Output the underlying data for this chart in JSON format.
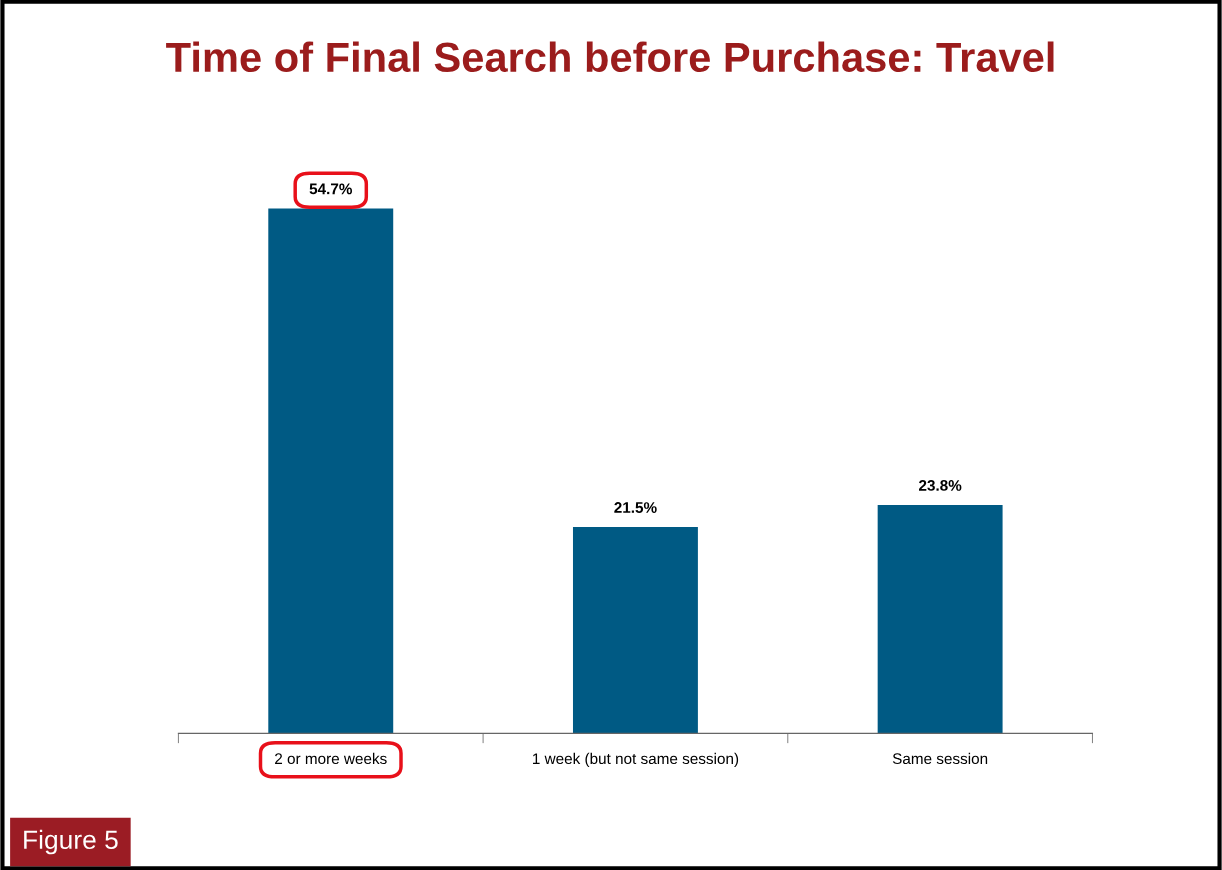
{
  "chart_data": {
    "type": "bar",
    "title": "Time of Final Search before Purchase: Travel",
    "categories": [
      "2 or more weeks",
      "1 week (but not same session)",
      "Same session"
    ],
    "values": [
      54.7,
      21.5,
      23.8
    ],
    "value_labels": [
      "54.7%",
      "21.5%",
      "23.8%"
    ],
    "color": "#005a84",
    "annotations": [
      "Figure 5"
    ]
  }
}
